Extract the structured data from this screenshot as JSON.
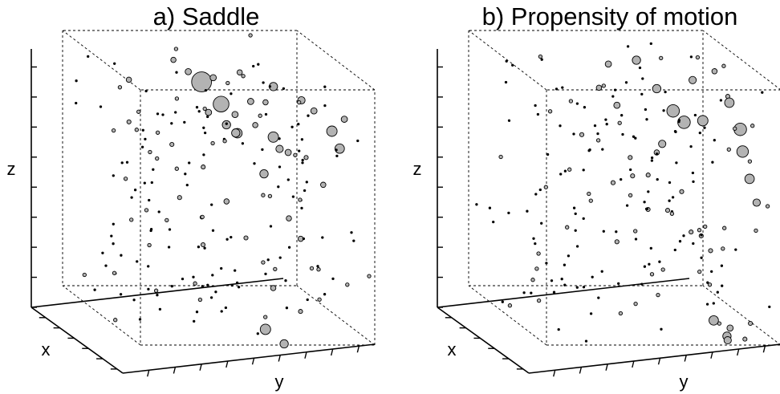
{
  "colors": {
    "sphere_fill": "#b3b3b3",
    "sphere_stroke": "#000000",
    "background": "#ffffff"
  },
  "chart_data": [
    {
      "type": "scatter",
      "subtype": "3d-bubble",
      "title": "a) Saddle",
      "xlabel": "x",
      "ylabel": "y",
      "zlabel": "z",
      "xlim": [
        0,
        1
      ],
      "ylim": [
        0,
        1
      ],
      "zlim": [
        0,
        1
      ],
      "grid": false,
      "legend": "none",
      "box": "dashed",
      "points": [
        [
          0.22,
          0.52,
          0.85,
          0.095
        ],
        [
          0.38,
          0.55,
          0.8,
          0.075
        ],
        [
          0.47,
          0.58,
          0.78,
          0.03
        ],
        [
          0.44,
          0.6,
          0.7,
          0.045
        ],
        [
          0.3,
          0.8,
          0.85,
          0.04
        ],
        [
          0.52,
          0.45,
          0.8,
          0.03
        ],
        [
          0.6,
          0.5,
          0.77,
          0.04
        ],
        [
          0.78,
          0.48,
          0.78,
          0.04
        ],
        [
          0.82,
          0.55,
          0.82,
          0.025
        ],
        [
          0.72,
          0.66,
          0.75,
          0.05
        ],
        [
          0.75,
          0.9,
          0.78,
          0.05
        ],
        [
          0.7,
          0.95,
          0.7,
          0.045
        ],
        [
          0.62,
          0.72,
          0.68,
          0.035
        ],
        [
          0.55,
          0.78,
          0.65,
          0.03
        ],
        [
          0.48,
          0.7,
          0.55,
          0.04
        ],
        [
          0.35,
          0.42,
          0.92,
          0.03
        ],
        [
          0.28,
          0.38,
          0.95,
          0.025
        ],
        [
          0.58,
          0.45,
          0.95,
          0.03
        ],
        [
          0.62,
          0.55,
          0.98,
          0.025
        ],
        [
          0.4,
          0.15,
          0.9,
          0.025
        ],
        [
          0.3,
          0.6,
          0.4,
          0.025
        ],
        [
          0.45,
          0.35,
          0.45,
          0.02
        ],
        [
          0.6,
          0.4,
          0.3,
          0.02
        ],
        [
          0.7,
          0.55,
          0.35,
          0.02
        ],
        [
          0.8,
          0.7,
          0.45,
          0.025
        ],
        [
          0.88,
          0.82,
          0.6,
          0.025
        ],
        [
          0.85,
          0.92,
          0.85,
          0.03
        ],
        [
          0.2,
          0.4,
          0.6,
          0.02
        ],
        [
          0.5,
          0.85,
          0.3,
          0.025
        ],
        [
          0.9,
          0.6,
          0.2,
          0.025
        ],
        [
          0.95,
          0.55,
          0.05,
          0.05
        ],
        [
          0.98,
          0.62,
          0.0,
          0.04
        ],
        [
          0.95,
          0.7,
          0.12,
          0.02
        ],
        [
          0.35,
          0.75,
          0.8,
          0.025
        ],
        [
          0.55,
          0.62,
          0.85,
          0.03
        ],
        [
          0.66,
          0.8,
          0.88,
          0.035
        ],
        [
          0.58,
          0.88,
          0.82,
          0.03
        ],
        [
          0.42,
          0.9,
          0.6,
          0.02
        ],
        [
          0.25,
          0.2,
          0.7,
          0.02
        ],
        [
          0.15,
          0.55,
          0.5,
          0.02
        ]
      ],
      "point_format": "[x, y, z, radius] in normalized box units"
    },
    {
      "type": "scatter",
      "subtype": "3d-bubble",
      "title": "b) Propensity of motion",
      "xlabel": "x",
      "ylabel": "y",
      "zlabel": "z",
      "xlim": [
        0,
        1
      ],
      "ylim": [
        0,
        1
      ],
      "zlim": [
        0,
        1
      ],
      "grid": false,
      "legend": "none",
      "box": "dashed",
      "points": [
        [
          0.55,
          0.62,
          0.9,
          0.04
        ],
        [
          0.5,
          0.55,
          1.0,
          0.04
        ],
        [
          0.62,
          0.75,
          0.95,
          0.035
        ],
        [
          0.58,
          0.68,
          0.82,
          0.06
        ],
        [
          0.6,
          0.72,
          0.78,
          0.06
        ],
        [
          0.66,
          0.78,
          0.8,
          0.05
        ],
        [
          0.7,
          0.88,
          0.88,
          0.045
        ],
        [
          0.72,
          0.92,
          0.78,
          0.06
        ],
        [
          0.75,
          0.92,
          0.7,
          0.055
        ],
        [
          0.78,
          0.94,
          0.6,
          0.045
        ],
        [
          0.75,
          0.98,
          0.5,
          0.035
        ],
        [
          0.62,
          0.62,
          0.7,
          0.035
        ],
        [
          0.55,
          0.62,
          0.65,
          0.025
        ],
        [
          0.4,
          0.5,
          0.8,
          0.03
        ],
        [
          0.32,
          0.45,
          0.85,
          0.025
        ],
        [
          0.35,
          0.48,
          0.95,
          0.03
        ],
        [
          0.42,
          0.55,
          0.6,
          0.02
        ],
        [
          0.5,
          0.6,
          0.55,
          0.02
        ],
        [
          0.6,
          0.85,
          0.98,
          0.025
        ],
        [
          0.68,
          0.88,
          0.9,
          0.02
        ],
        [
          0.8,
          0.78,
          0.05,
          0.045
        ],
        [
          0.85,
          0.82,
          0.0,
          0.04
        ],
        [
          0.8,
          0.85,
          0.02,
          0.03
        ],
        [
          0.92,
          0.8,
          0.0,
          0.035
        ],
        [
          0.9,
          0.88,
          0.0,
          0.02
        ],
        [
          0.85,
          0.92,
          0.05,
          0.02
        ],
        [
          0.3,
          0.6,
          0.5,
          0.02
        ],
        [
          0.45,
          0.7,
          0.4,
          0.02
        ],
        [
          0.6,
          0.75,
          0.35,
          0.02
        ],
        [
          0.7,
          0.8,
          0.3,
          0.02
        ],
        [
          0.25,
          0.4,
          0.65,
          0.02
        ],
        [
          0.55,
          0.45,
          0.3,
          0.02
        ],
        [
          0.65,
          0.55,
          0.45,
          0.02
        ],
        [
          0.78,
          0.65,
          0.55,
          0.02
        ],
        [
          0.88,
          0.7,
          0.4,
          0.02
        ],
        [
          0.2,
          0.55,
          0.45,
          0.02
        ]
      ],
      "point_format": "[x, y, z, radius] in normalized box units"
    }
  ]
}
